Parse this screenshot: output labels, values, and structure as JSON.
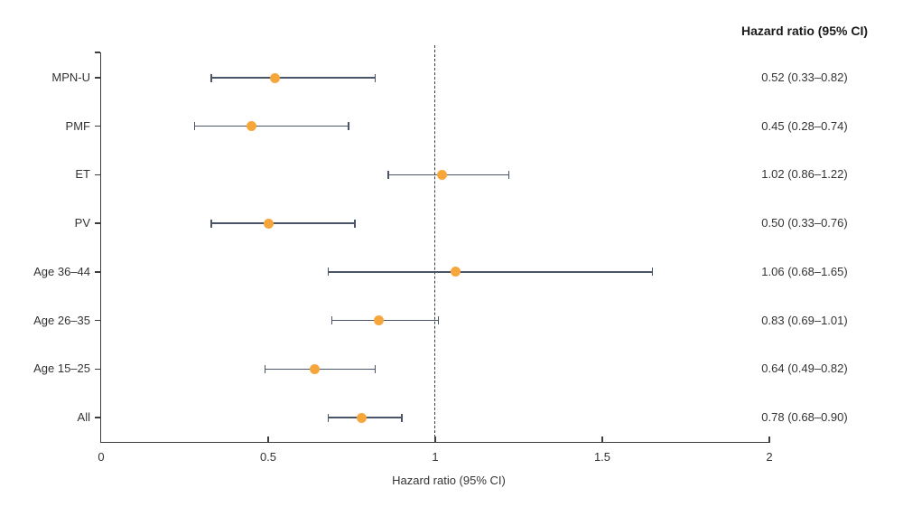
{
  "figure": {
    "column_header": "Hazard ratio (95% CI)",
    "x_axis_title": "Hazard ratio (95% CI)"
  },
  "chart_data": {
    "type": "forest",
    "title": "",
    "categories": [
      "MPN-U",
      "PMF",
      "ET",
      "PV",
      "Age 36–44",
      "Age 26–35",
      "Age 15–25",
      "All"
    ],
    "estimates": [
      0.52,
      0.45,
      1.02,
      0.5,
      1.06,
      0.83,
      0.64,
      0.78
    ],
    "ci_low": [
      0.33,
      0.28,
      0.86,
      0.33,
      0.68,
      0.69,
      0.49,
      0.68
    ],
    "ci_high": [
      0.82,
      0.74,
      1.22,
      0.76,
      1.65,
      1.01,
      0.82,
      0.9
    ],
    "value_labels": [
      "0.52 (0.33–0.82)",
      "0.45 (0.28–0.74)",
      "1.02 (0.86–1.22)",
      "0.50 (0.33–0.76)",
      "1.06 (0.68–1.65)",
      "0.83 (0.69–1.01)",
      "0.64 (0.49–0.82)",
      "0.78 (0.68–0.90)"
    ],
    "values_column_header": "Hazard ratio (95% CI)",
    "xlabel": "Hazard ratio (95% CI)",
    "xlim": [
      0,
      2
    ],
    "x_ticks": [
      0,
      0.5,
      1,
      1.5,
      2
    ],
    "x_tick_labels": [
      "0",
      "0.5",
      "1",
      "1.5",
      "2"
    ],
    "reference_line": 1,
    "grid": "off",
    "legend": "none",
    "colors": {
      "point": "#F7A63C",
      "ci_line": "#4A5568",
      "axis": "#3D3D3D",
      "text": "#333333",
      "header_text": "#1A1A1A",
      "reference": "#3D3D3D",
      "background": "#FFFFFF"
    }
  }
}
